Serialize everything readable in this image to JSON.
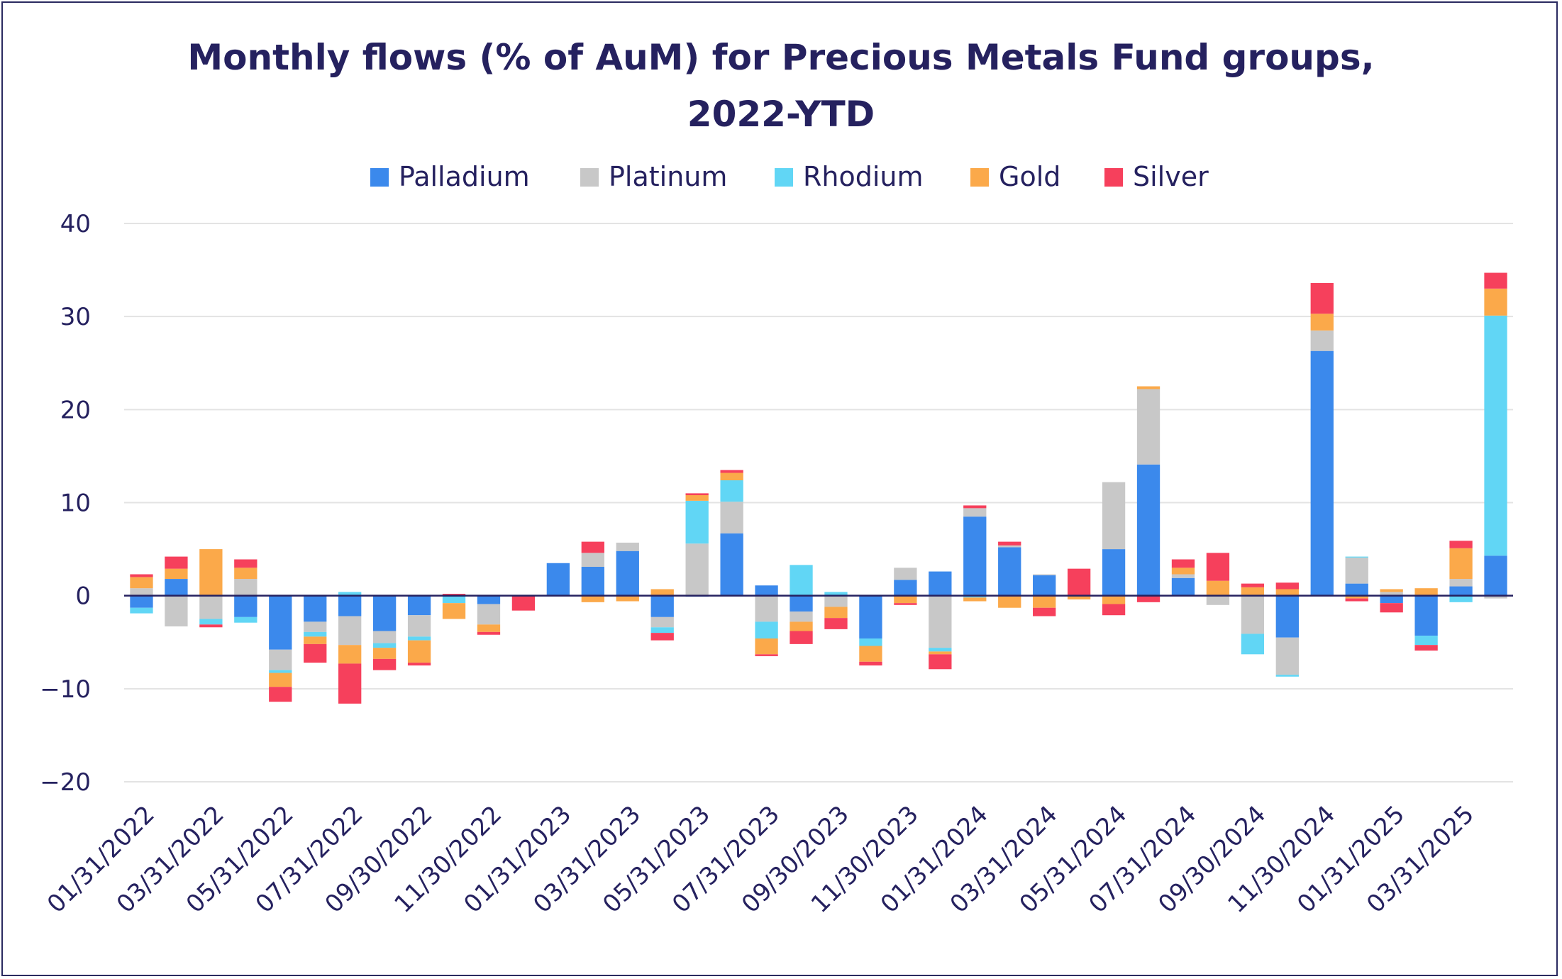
{
  "chart_data": {
    "type": "bar",
    "stacked": true,
    "title_lines": [
      "Monthly flows (% of AuM) for Precious Metals Fund groups,",
      "2022-YTD"
    ],
    "ylim": [
      -20,
      40
    ],
    "yticks": [
      40,
      30,
      20,
      10,
      0,
      -10,
      -20
    ],
    "tick_labels": [
      "01/31/2022",
      "03/31/2022",
      "05/31/2022",
      "07/31/2022",
      "09/30/2022",
      "11/30/2022",
      "01/31/2023",
      "03/31/2023",
      "05/31/2023",
      "07/31/2023",
      "09/30/2023",
      "11/30/2023",
      "01/31/2024",
      "03/31/2024",
      "05/31/2024",
      "07/31/2024",
      "09/30/2024",
      "11/30/2024",
      "01/31/2025",
      "03/31/2025"
    ],
    "categories": [
      "01/31/2022",
      "02/28/2022",
      "03/31/2022",
      "04/30/2022",
      "05/31/2022",
      "06/30/2022",
      "07/31/2022",
      "08/31/2022",
      "09/30/2022",
      "10/31/2022",
      "11/30/2022",
      "12/31/2022",
      "01/31/2023",
      "02/28/2023",
      "03/31/2023",
      "04/30/2023",
      "05/31/2023",
      "06/30/2023",
      "07/31/2023",
      "08/31/2023",
      "09/30/2023",
      "10/31/2023",
      "11/30/2023",
      "12/31/2023",
      "01/31/2024",
      "02/29/2024",
      "03/31/2024",
      "04/30/2024",
      "05/31/2024",
      "06/30/2024",
      "07/31/2024",
      "08/31/2024",
      "09/30/2024",
      "10/31/2024",
      "11/30/2024",
      "12/31/2024",
      "01/31/2025",
      "02/28/2025",
      "03/31/2025",
      "04/30/2025"
    ],
    "legend_position": "top-center",
    "series": [
      {
        "name": "Palladium",
        "color": "#3b89ec",
        "values": [
          -1.3,
          1.8,
          0,
          -2.3,
          -5.8,
          -2.8,
          -2.2,
          -3.8,
          -2.1,
          -0.1,
          -0.9,
          0,
          3.5,
          3.1,
          4.8,
          -2.3,
          -0.1,
          6.7,
          1.1,
          -1.7,
          0,
          -4.6,
          1.7,
          2.6,
          8.5,
          5.2,
          2.2,
          0,
          5.0,
          14.1,
          1.9,
          0,
          0,
          -4.5,
          26.3,
          1.3,
          -0.8,
          -4.3,
          1.0,
          4.3
        ]
      },
      {
        "name": "Platinum",
        "color": "#c8c8c8",
        "values": [
          0.8,
          -3.3,
          -2.5,
          1.8,
          -2.2,
          -1.1,
          -3.1,
          -1.3,
          -2.3,
          0,
          -2.2,
          0,
          0,
          1.5,
          0.9,
          -1.1,
          5.6,
          3.4,
          -2.8,
          -1.1,
          -1.2,
          0,
          1.3,
          -5.6,
          0.9,
          0.2,
          0.1,
          0,
          7.2,
          8.1,
          0.4,
          -1.0,
          -4.1,
          -4.0,
          2.2,
          2.8,
          0.4,
          0,
          0.8,
          -0.3
        ]
      },
      {
        "name": "Rhodium",
        "color": "#61d6f5",
        "values": [
          -0.6,
          0,
          -0.6,
          -0.6,
          -0.3,
          -0.5,
          0.4,
          -0.5,
          -0.4,
          -0.7,
          0,
          0,
          0,
          0,
          0,
          -0.6,
          4.6,
          2.3,
          -1.8,
          3.3,
          0.4,
          -0.8,
          0,
          -0.4,
          -0.2,
          0,
          0,
          0,
          0,
          0,
          0,
          0,
          -2.2,
          -0.2,
          0,
          0.1,
          0,
          -1.0,
          -0.7,
          25.8
        ]
      },
      {
        "name": "Gold",
        "color": "#fba94a",
        "values": [
          1.2,
          1.1,
          5.0,
          1.2,
          -1.5,
          -0.8,
          -2.0,
          -1.2,
          -2.4,
          -1.7,
          -0.8,
          0,
          0,
          -0.7,
          -0.6,
          0.7,
          0.6,
          0.8,
          -1.7,
          -1.0,
          -1.2,
          -1.7,
          -0.8,
          -0.3,
          -0.4,
          -1.3,
          -1.3,
          -0.4,
          -0.9,
          0.3,
          0.7,
          1.6,
          0.9,
          0.7,
          1.8,
          -0.3,
          0.3,
          0.8,
          3.3,
          2.9
        ]
      },
      {
        "name": "Silver",
        "color": "#f6405c",
        "values": [
          0.3,
          1.3,
          -0.3,
          0.9,
          -1.6,
          -2.0,
          -4.3,
          -1.2,
          -0.3,
          0.2,
          -0.3,
          -1.6,
          0,
          1.2,
          0,
          -0.8,
          0.2,
          0.3,
          -0.2,
          -1.4,
          -1.2,
          -0.4,
          -0.2,
          -1.6,
          0.3,
          0.4,
          -0.9,
          2.9,
          -1.2,
          -0.7,
          0.9,
          3.0,
          0.4,
          0.7,
          3.3,
          -0.3,
          -1.0,
          -0.6,
          0.8,
          1.7
        ]
      }
    ]
  }
}
